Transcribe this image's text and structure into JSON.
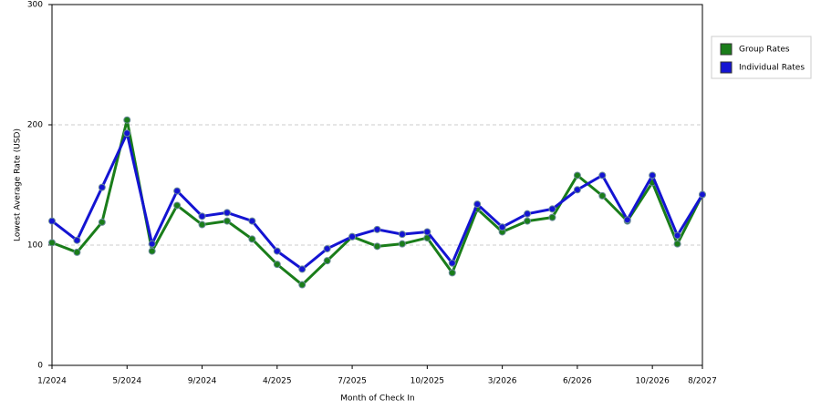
{
  "chart_data": {
    "type": "line",
    "x_label": "Month of Check In",
    "y_label": "Lowest Average Rate (USD)",
    "categories": [
      "1/2024",
      null,
      null,
      "5/2024",
      null,
      null,
      "9/2024",
      null,
      null,
      "4/2025",
      null,
      null,
      "7/2025",
      null,
      null,
      "10/2025",
      null,
      null,
      "3/2026",
      null,
      null,
      "6/2026",
      null,
      null,
      "10/2026",
      null,
      "8/2027"
    ],
    "series": [
      {
        "name": "Group Rates",
        "color": "#1a7d1a",
        "values": [
          102,
          94,
          119,
          204,
          95,
          133,
          117,
          120,
          105,
          84,
          67,
          87,
          107,
          99,
          101,
          106,
          77,
          130,
          111,
          120,
          123,
          158,
          141,
          120,
          152,
          101,
          142
        ]
      },
      {
        "name": "Individual Rates",
        "color": "#1414d2",
        "values": [
          120,
          104,
          148,
          193,
          101,
          145,
          124,
          127,
          120,
          95,
          80,
          97,
          107,
          113,
          109,
          111,
          85,
          134,
          115,
          126,
          130,
          146,
          158,
          121,
          158,
          108,
          142
        ]
      }
    ],
    "ylim": [
      0,
      300
    ],
    "yticks": [
      0,
      100,
      200,
      300
    ],
    "grid": true,
    "legend": "right"
  }
}
